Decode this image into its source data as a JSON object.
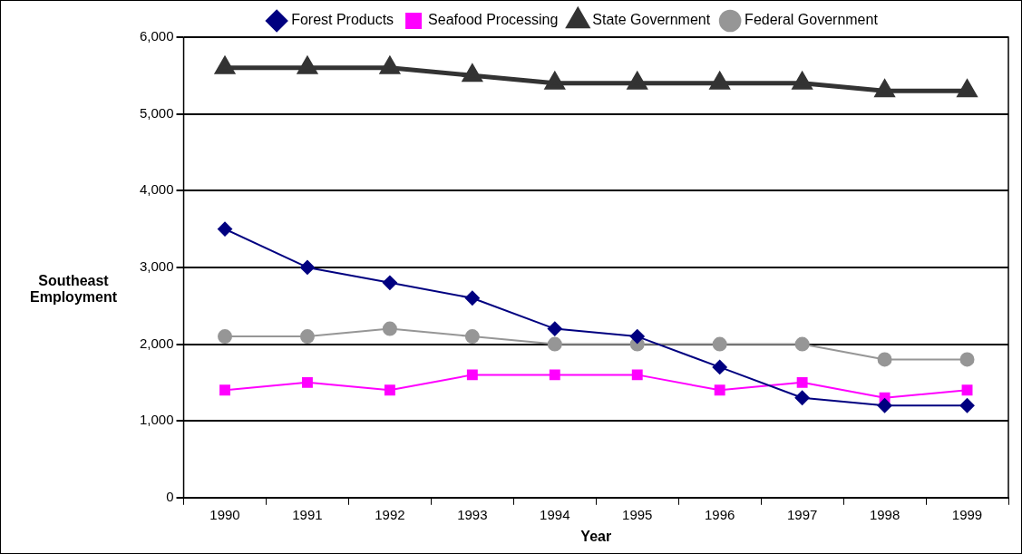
{
  "chart_data": {
    "type": "line",
    "xlabel": "Year",
    "ylabel": "Southeast Employment",
    "categories": [
      "1990",
      "1991",
      "1992",
      "1993",
      "1994",
      "1995",
      "1996",
      "1997",
      "1998",
      "1999"
    ],
    "series": [
      {
        "name": "Forest Products",
        "color": "#000080",
        "marker": "diamond",
        "values": [
          3500,
          3000,
          2800,
          2600,
          2200,
          2100,
          1700,
          1300,
          1200,
          1200
        ]
      },
      {
        "name": "Seafood Processing",
        "color": "#ff00ff",
        "marker": "square",
        "values": [
          1400,
          1500,
          1400,
          1600,
          1600,
          1600,
          1400,
          1500,
          1300,
          1400
        ]
      },
      {
        "name": "State Government",
        "color": "#333333",
        "marker": "triangle",
        "values": [
          5600,
          5600,
          5600,
          5500,
          5400,
          5400,
          5400,
          5400,
          5300,
          5300
        ]
      },
      {
        "name": "Federal Government",
        "color": "#969696",
        "marker": "circle",
        "values": [
          2100,
          2100,
          2200,
          2100,
          2000,
          2000,
          2000,
          2000,
          1800,
          1800
        ]
      }
    ],
    "ylim": [
      0,
      6000
    ],
    "yticks": [
      0,
      {
        "value": 1000,
        "label": "1,000"
      },
      {
        "value": 2000,
        "label": "2,000"
      },
      {
        "value": 3000,
        "label": "3,000"
      },
      {
        "value": 4000,
        "label": "4,000"
      },
      {
        "value": 5000,
        "label": "5,000"
      },
      {
        "value": 6000,
        "label": "6,000"
      }
    ],
    "grid": "y",
    "legend": "top",
    "line_style": "solid"
  }
}
